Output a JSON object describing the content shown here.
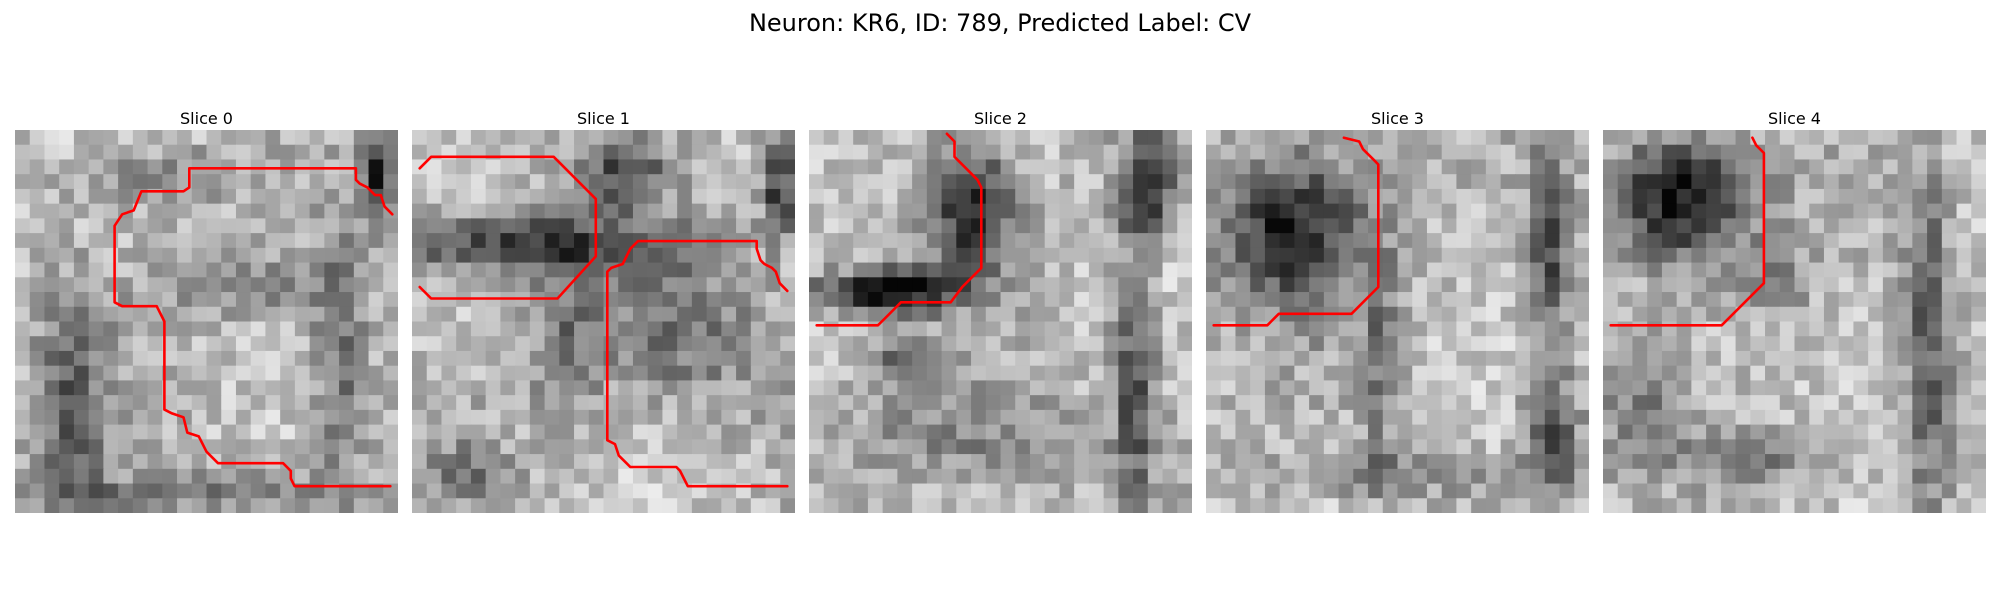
{
  "figure": {
    "title": "Neuron: KR6, ID: 789, Predicted Label: CV"
  },
  "slices": [
    {
      "title": "Slice 0"
    },
    {
      "title": "Slice 1"
    },
    {
      "title": "Slice 2"
    },
    {
      "title": "Slice 3"
    },
    {
      "title": "Slice 4"
    }
  ],
  "colors": {
    "contour": "#ff0000",
    "colormap": "gray"
  }
}
